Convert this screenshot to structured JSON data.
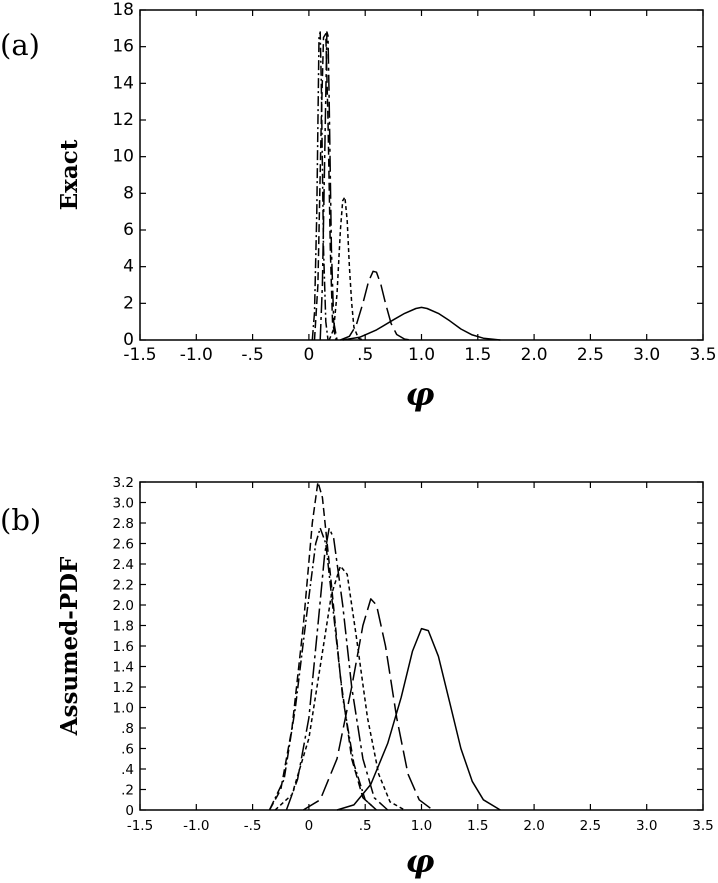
{
  "chart_data": [
    {
      "type": "line",
      "panel_label": "(a)",
      "xlabel": "φ",
      "ylabel": "Exact",
      "xlim": [
        -1.5,
        3.5
      ],
      "ylim": [
        0,
        18
      ],
      "x_ticks": [
        -1.5,
        -1.0,
        -0.5,
        0,
        0.5,
        1.0,
        1.5,
        2.0,
        2.5,
        3.0,
        3.5
      ],
      "x_tick_labels": [
        "-1.5",
        "-1.0",
        "-.5",
        "0",
        ".5",
        "1.0",
        "1.5",
        "2.0",
        "2.5",
        "3.0",
        "3.5"
      ],
      "y_ticks": [
        0,
        2,
        4,
        6,
        8,
        10,
        12,
        14,
        16,
        18
      ],
      "y_tick_labels": [
        "0",
        "2",
        "4",
        "6",
        "8",
        "10",
        "12",
        "14",
        "16",
        "18"
      ],
      "grid": false,
      "series": [
        {
          "style": "solid",
          "points": [
            [
              0.3,
              0.0
            ],
            [
              0.45,
              0.15
            ],
            [
              0.6,
              0.55
            ],
            [
              0.75,
              1.1
            ],
            [
              0.85,
              1.45
            ],
            [
              0.95,
              1.72
            ],
            [
              1.0,
              1.78
            ],
            [
              1.05,
              1.72
            ],
            [
              1.15,
              1.45
            ],
            [
              1.25,
              1.05
            ],
            [
              1.35,
              0.6
            ],
            [
              1.45,
              0.28
            ],
            [
              1.55,
              0.1
            ],
            [
              1.7,
              0.0
            ]
          ]
        },
        {
          "style": "long-dash",
          "points": [
            [
              0.28,
              0.0
            ],
            [
              0.36,
              0.2
            ],
            [
              0.42,
              0.8
            ],
            [
              0.48,
              2.0
            ],
            [
              0.53,
              3.2
            ],
            [
              0.57,
              3.75
            ],
            [
              0.6,
              3.7
            ],
            [
              0.64,
              3.0
            ],
            [
              0.68,
              2.0
            ],
            [
              0.73,
              0.9
            ],
            [
              0.78,
              0.3
            ],
            [
              0.85,
              0.05
            ],
            [
              0.9,
              0.0
            ]
          ]
        },
        {
          "style": "short-dash",
          "points": [
            [
              0.18,
              0.0
            ],
            [
              0.22,
              0.6
            ],
            [
              0.25,
              2.5
            ],
            [
              0.28,
              6.0
            ],
            [
              0.3,
              7.6
            ],
            [
              0.32,
              7.8
            ],
            [
              0.34,
              6.5
            ],
            [
              0.36,
              4.0
            ],
            [
              0.38,
              2.0
            ],
            [
              0.4,
              0.7
            ],
            [
              0.44,
              0.1
            ],
            [
              0.48,
              0.0
            ]
          ]
        },
        {
          "style": "dash",
          "points": [
            [
              0.05,
              0.0
            ],
            [
              0.08,
              3.0
            ],
            [
              0.11,
              12.0
            ],
            [
              0.13,
              16.5
            ],
            [
              0.15,
              16.7
            ],
            [
              0.17,
              12.0
            ],
            [
              0.19,
              5.0
            ],
            [
              0.21,
              1.0
            ],
            [
              0.24,
              0.0
            ]
          ]
        },
        {
          "style": "dash-dot",
          "points": [
            [
              0.03,
              0.0
            ],
            [
              0.05,
              1.5
            ],
            [
              0.07,
              7.0
            ],
            [
              0.09,
              16.5
            ],
            [
              0.1,
              16.8
            ],
            [
              0.11,
              14.0
            ],
            [
              0.13,
              5.0
            ],
            [
              0.15,
              1.0
            ],
            [
              0.17,
              0.0
            ]
          ]
        },
        {
          "style": "long-dash-dot",
          "points": [
            [
              0.1,
              0.0
            ],
            [
              0.12,
              3.0
            ],
            [
              0.14,
              10.0
            ],
            [
              0.16,
              16.8
            ],
            [
              0.17,
              16.6
            ],
            [
              0.18,
              13.0
            ],
            [
              0.2,
              5.0
            ],
            [
              0.22,
              1.0
            ],
            [
              0.25,
              0.0
            ]
          ]
        }
      ]
    },
    {
      "type": "line",
      "panel_label": "(b)",
      "xlabel": "φ",
      "ylabel": "Assumed-PDF",
      "xlim": [
        -1.5,
        3.5
      ],
      "ylim": [
        0,
        3.2
      ],
      "x_ticks": [
        -1.5,
        -1.0,
        -0.5,
        0,
        0.5,
        1.0,
        1.5,
        2.0,
        2.5,
        3.0,
        3.5
      ],
      "x_tick_labels": [
        "-1.5",
        "-1.0",
        "-.5",
        "0",
        ".5",
        "1.0",
        "1.5",
        "2.0",
        "2.5",
        "3.0",
        "3.5"
      ],
      "y_ticks": [
        0,
        0.2,
        0.4,
        0.6,
        0.8,
        1.0,
        1.2,
        1.4,
        1.6,
        1.8,
        2.0,
        2.2,
        2.4,
        2.6,
        2.8,
        3.0,
        3.2
      ],
      "y_tick_labels": [
        "0",
        ".2",
        ".4",
        ".6",
        ".8",
        "1.0",
        "1.2",
        "1.4",
        "1.6",
        "1.8",
        "2.0",
        "2.2",
        "2.4",
        "2.6",
        "2.8",
        "3.0",
        "3.2"
      ],
      "grid": false,
      "series": [
        {
          "style": "solid",
          "points": [
            [
              0.25,
              0.0
            ],
            [
              0.4,
              0.05
            ],
            [
              0.55,
              0.25
            ],
            [
              0.7,
              0.65
            ],
            [
              0.82,
              1.1
            ],
            [
              0.92,
              1.55
            ],
            [
              1.0,
              1.77
            ],
            [
              1.06,
              1.75
            ],
            [
              1.15,
              1.5
            ],
            [
              1.25,
              1.05
            ],
            [
              1.35,
              0.6
            ],
            [
              1.45,
              0.28
            ],
            [
              1.55,
              0.1
            ],
            [
              1.7,
              0.0
            ]
          ]
        },
        {
          "style": "long-dash",
          "points": [
            [
              -0.05,
              0.0
            ],
            [
              0.1,
              0.1
            ],
            [
              0.25,
              0.5
            ],
            [
              0.38,
              1.2
            ],
            [
              0.48,
              1.8
            ],
            [
              0.55,
              2.06
            ],
            [
              0.6,
              2.0
            ],
            [
              0.68,
              1.6
            ],
            [
              0.78,
              0.9
            ],
            [
              0.88,
              0.35
            ],
            [
              0.98,
              0.1
            ],
            [
              1.1,
              0.0
            ]
          ]
        },
        {
          "style": "short-dash",
          "points": [
            [
              -0.3,
              0.0
            ],
            [
              -0.15,
              0.15
            ],
            [
              0.0,
              0.7
            ],
            [
              0.1,
              1.4
            ],
            [
              0.2,
              2.1
            ],
            [
              0.28,
              2.38
            ],
            [
              0.34,
              2.3
            ],
            [
              0.42,
              1.7
            ],
            [
              0.52,
              0.9
            ],
            [
              0.62,
              0.35
            ],
            [
              0.72,
              0.08
            ],
            [
              0.85,
              0.0
            ]
          ]
        },
        {
          "style": "dash",
          "points": [
            [
              -0.35,
              0.0
            ],
            [
              -0.25,
              0.2
            ],
            [
              -0.15,
              0.8
            ],
            [
              -0.05,
              1.8
            ],
            [
              0.03,
              2.8
            ],
            [
              0.08,
              3.2
            ],
            [
              0.12,
              3.05
            ],
            [
              0.2,
              2.2
            ],
            [
              0.28,
              1.3
            ],
            [
              0.38,
              0.5
            ],
            [
              0.48,
              0.12
            ],
            [
              0.6,
              0.0
            ]
          ]
        },
        {
          "style": "dash-dot",
          "points": [
            [
              -0.35,
              0.0
            ],
            [
              -0.22,
              0.3
            ],
            [
              -0.12,
              1.0
            ],
            [
              -0.02,
              1.9
            ],
            [
              0.06,
              2.6
            ],
            [
              0.1,
              2.75
            ],
            [
              0.15,
              2.6
            ],
            [
              0.22,
              1.9
            ],
            [
              0.3,
              1.1
            ],
            [
              0.4,
              0.45
            ],
            [
              0.5,
              0.1
            ],
            [
              0.6,
              0.0
            ]
          ]
        },
        {
          "style": "long-dash-dot",
          "points": [
            [
              -0.2,
              0.0
            ],
            [
              -0.1,
              0.3
            ],
            [
              0.0,
              0.9
            ],
            [
              0.08,
              1.8
            ],
            [
              0.14,
              2.5
            ],
            [
              0.18,
              2.75
            ],
            [
              0.22,
              2.65
            ],
            [
              0.3,
              2.0
            ],
            [
              0.38,
              1.2
            ],
            [
              0.48,
              0.5
            ],
            [
              0.58,
              0.12
            ],
            [
              0.7,
              0.0
            ]
          ]
        }
      ]
    }
  ]
}
